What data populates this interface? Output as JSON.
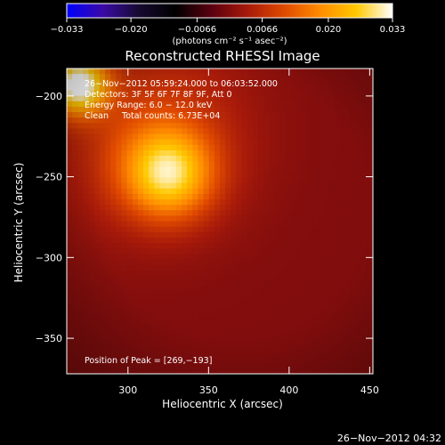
{
  "chart_data": {
    "type": "heatmap",
    "title": "Reconstructed RHESSI Image",
    "xlabel": "Heliocentric X (arcsec)",
    "ylabel": "Heliocentric Y (arcsec)",
    "xlim": [
      262,
      452
    ],
    "ylim": [
      -372,
      -183
    ],
    "x_ticks": [
      300,
      350,
      400,
      450
    ],
    "x_tick_labels": [
      "300",
      "350",
      "400",
      "450"
    ],
    "y_ticks": [
      -200,
      -250,
      -300,
      -350
    ],
    "y_tick_labels": [
      "−200",
      "−250",
      "−300",
      "−350"
    ],
    "colorbar": {
      "min": -0.033,
      "max": 0.033,
      "tick_values": [
        -0.033,
        -0.02,
        -0.0066,
        0.0066,
        0.02,
        0.033
      ],
      "tick_labels": [
        "−0.033",
        "−0.020",
        "−0.0066",
        "0.0066",
        "0.020",
        "0.033"
      ],
      "units_line": "(photons cm⁻² s⁻¹ asec⁻²)",
      "colors": [
        "#0000ff",
        "#3a0aa6",
        "#160a30",
        "#000000",
        "#5a0010",
        "#a81a0a",
        "#e04a00",
        "#ff8c00",
        "#ffc800",
        "#ffffff"
      ]
    },
    "annotations": {
      "time_range": "26−Nov−2012 05:59:24.000 to 06:03:52.000",
      "detectors": "Detectors: 3F 5F 6F 7F 8F 9F, Att 0",
      "energy": "Energy Range: 6.0 − 12.0 keV",
      "method": "Clean",
      "total_counts": "Total counts: 6.73E+04",
      "peak": "Position of Peak = [269,−193]"
    },
    "sources": [
      {
        "x": 269,
        "y": -193,
        "amplitude": 0.033,
        "width_arcsec": 13
      },
      {
        "x": 325,
        "y": -248,
        "amplitude": 0.024,
        "width_arcsec": 19
      },
      {
        "x": 315,
        "y": -225,
        "amplitude": 0.009,
        "width_arcsec": 40
      }
    ],
    "timestamp": "26−Nov−2012 04:32"
  }
}
